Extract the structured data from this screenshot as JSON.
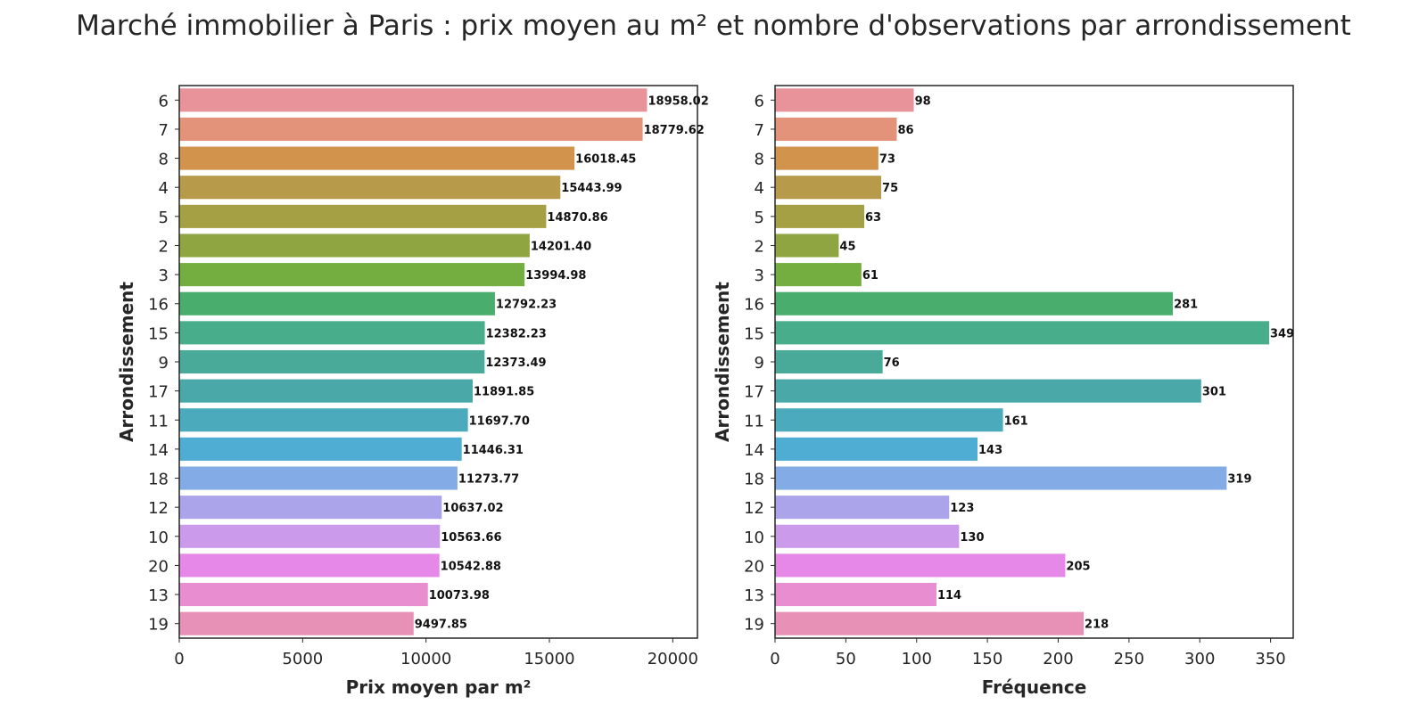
{
  "title": "Marché immobilier à Paris : prix moyen au m² et nombre d'observations par arrondissement",
  "chart_data": [
    {
      "type": "bar",
      "orientation": "horizontal",
      "categories": [
        "6",
        "7",
        "8",
        "4",
        "5",
        "2",
        "3",
        "16",
        "15",
        "9",
        "17",
        "11",
        "14",
        "18",
        "12",
        "10",
        "20",
        "13",
        "19"
      ],
      "values": [
        18958.02,
        18779.62,
        16018.45,
        15443.99,
        14870.86,
        14201.4,
        13994.98,
        12792.23,
        12382.23,
        12373.49,
        11891.85,
        11697.7,
        11446.31,
        11273.77,
        10637.02,
        10563.66,
        10542.88,
        10073.98,
        9497.85
      ],
      "value_labels": [
        "18958.02",
        "18779.62",
        "16018.45",
        "15443.99",
        "14870.86",
        "14201.40",
        "13994.98",
        "12792.23",
        "12382.23",
        "12373.49",
        "11891.85",
        "11697.70",
        "11446.31",
        "11273.77",
        "10637.02",
        "10563.66",
        "10542.88",
        "10073.98",
        "9497.85"
      ],
      "xlabel": "Prix moyen par m²",
      "ylabel": "Arrondissement",
      "xlim": [
        0,
        21000
      ],
      "xticks": [
        0,
        5000,
        10000,
        15000,
        20000
      ],
      "xtick_labels": [
        "0",
        "5000",
        "10000",
        "15000",
        "20000"
      ],
      "grid": false
    },
    {
      "type": "bar",
      "orientation": "horizontal",
      "categories": [
        "6",
        "7",
        "8",
        "4",
        "5",
        "2",
        "3",
        "16",
        "15",
        "9",
        "17",
        "11",
        "14",
        "18",
        "12",
        "10",
        "20",
        "13",
        "19"
      ],
      "values": [
        98,
        86,
        73,
        75,
        63,
        45,
        61,
        281,
        349,
        76,
        301,
        161,
        143,
        319,
        123,
        130,
        205,
        114,
        218
      ],
      "value_labels": [
        "98",
        "86",
        "73",
        "75",
        "63",
        "45",
        "61",
        "281",
        "349",
        "76",
        "301",
        "161",
        "143",
        "319",
        "123",
        "130",
        "205",
        "114",
        "218"
      ],
      "xlabel": "Fréquence",
      "ylabel": "Arrondissement",
      "xlim": [
        0,
        366
      ],
      "xticks": [
        0,
        50,
        100,
        150,
        200,
        250,
        300,
        350
      ],
      "xtick_labels": [
        "0",
        "50",
        "100",
        "150",
        "200",
        "250",
        "300",
        "350"
      ],
      "grid": false
    }
  ],
  "bar_colors": [
    "#E8929A",
    "#E4937B",
    "#D2944D",
    "#B79A4A",
    "#A6A044",
    "#8FA542",
    "#74AE40",
    "#48AD6D",
    "#48AD8A",
    "#49AA9A",
    "#4AA9A8",
    "#4BABBD",
    "#4FACD2",
    "#83ABE5",
    "#ACA4EA",
    "#CC9AEA",
    "#E588E8",
    "#E88DCF",
    "#E791B6"
  ]
}
